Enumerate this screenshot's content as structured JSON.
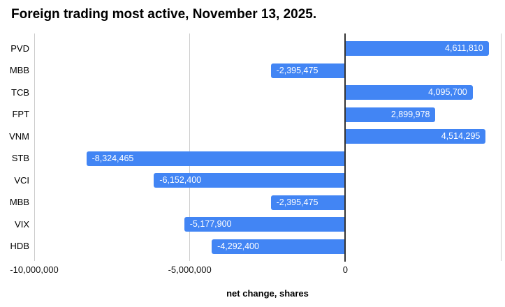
{
  "chart_data": {
    "type": "bar",
    "orientation": "horizontal",
    "title": "Foreign trading most active, November 13, 2025.",
    "xlabel": "net change, shares",
    "categories": [
      "PVD",
      "MBB",
      "TCB",
      "FPT",
      "VNM",
      "STB",
      "VCI",
      "MBB",
      "VIX",
      "HDB"
    ],
    "values": [
      4611810,
      -2395475,
      4095700,
      2899978,
      4514295,
      -8324465,
      -6152400,
      -2395475,
      -5177900,
      -4292400
    ],
    "value_labels": [
      "4,611,810",
      "-2,395,475",
      "4,095,700",
      "2,899,978",
      "4,514,295",
      "-8,324,465",
      "-6,152,400",
      "-2,395,475",
      "-5,177,900",
      "-4,292,400"
    ],
    "xlim": [
      -10000000,
      5000000
    ],
    "xticks": [
      {
        "value": -10000000,
        "label": "-10,000,000"
      },
      {
        "value": -5000000,
        "label": "-5,000,000"
      },
      {
        "value": 0,
        "label": "0"
      },
      {
        "value": 5000000,
        "label": ""
      }
    ],
    "grid": true,
    "legend": "none",
    "colors": {
      "bar": "#4285F4",
      "bar_label": "#ffffff",
      "gridline": "#cccccc",
      "zero_axis": "#333333",
      "text": "#000000",
      "background": "#ffffff"
    }
  }
}
